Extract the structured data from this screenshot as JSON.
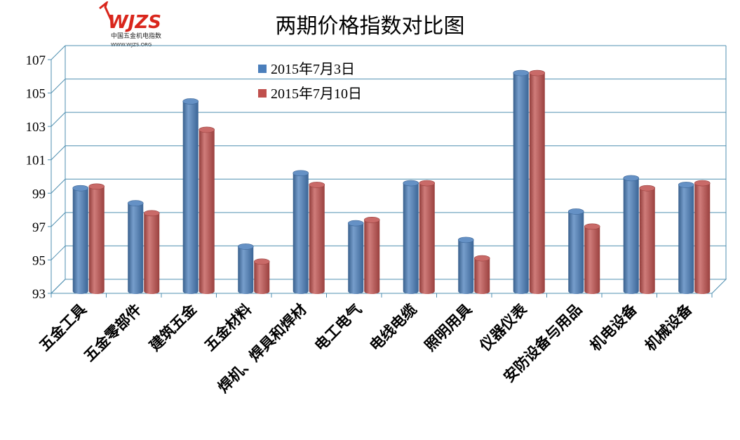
{
  "logo": {
    "mark": "WJZS",
    "name": "中国五金机电指数",
    "site": "WWW.WJZS.ORG"
  },
  "chart_data": {
    "type": "bar",
    "title": "两期价格指数对比图",
    "xlabel": "",
    "ylabel": "",
    "ylim": [
      93,
      107
    ],
    "yticks": [
      93,
      95,
      97,
      99,
      101,
      103,
      105,
      107
    ],
    "grid": true,
    "legend_position": "top-center",
    "categories": [
      "五金工具",
      "五金零部件",
      "建筑五金",
      "五金材料",
      "焊机、焊具和焊材",
      "电工电气",
      "电线电缆",
      "照明用具",
      "仪器仪表",
      "安防设备与用品",
      "机电设备",
      "机械设备"
    ],
    "series": [
      {
        "name": "2015年7月3日",
        "color": "#4a7ebb",
        "values": [
          99.3,
          98.4,
          104.5,
          95.8,
          100.2,
          97.2,
          99.6,
          96.2,
          106.2,
          97.9,
          99.9,
          99.5
        ]
      },
      {
        "name": "2015年7月10日",
        "color": "#c0504d",
        "values": [
          99.4,
          97.8,
          102.8,
          94.9,
          99.5,
          97.4,
          99.6,
          95.1,
          106.2,
          97.0,
          99.3,
          99.6
        ]
      }
    ]
  }
}
